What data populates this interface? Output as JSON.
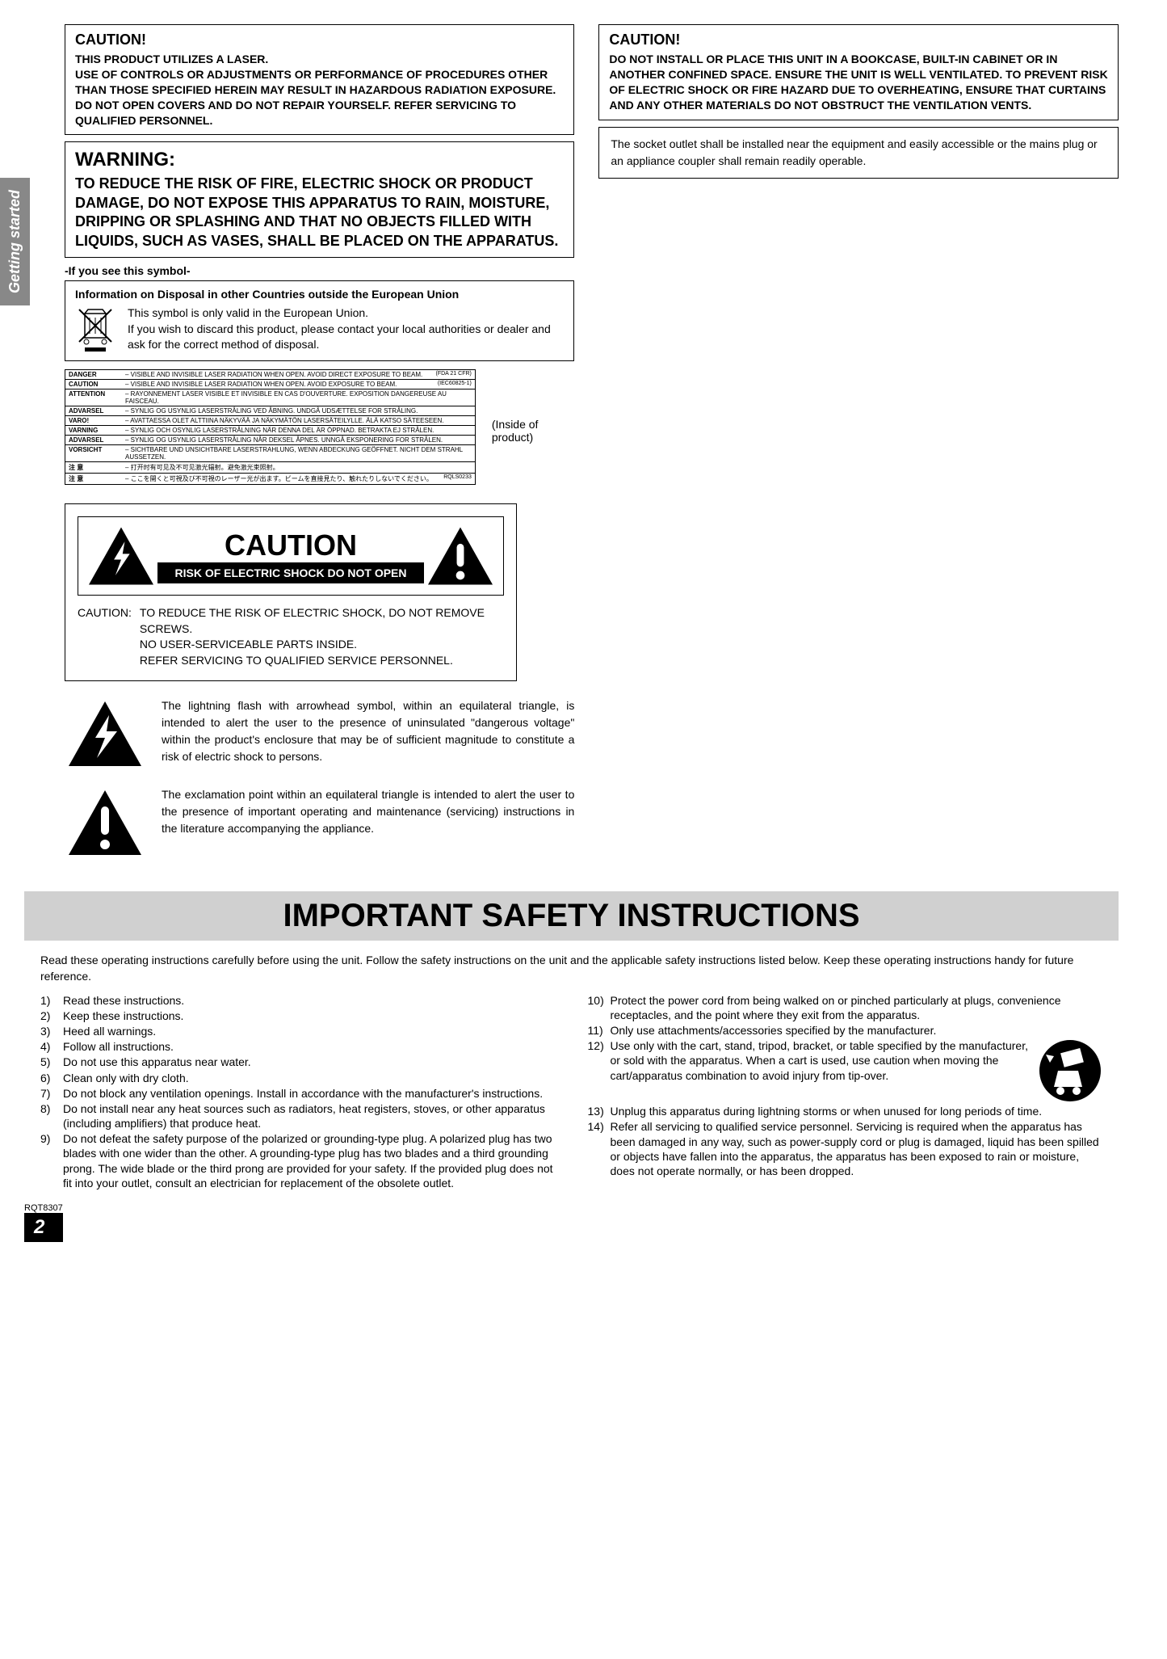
{
  "sidebar_label": "Getting started",
  "caution1": {
    "title": "CAUTION!",
    "text": "THIS PRODUCT UTILIZES A LASER.\nUSE OF CONTROLS OR ADJUSTMENTS OR PERFORMANCE OF PROCEDURES OTHER THAN THOSE SPECIFIED HEREIN MAY RESULT IN HAZARDOUS RADIATION EXPOSURE.\nDO NOT OPEN COVERS AND DO NOT REPAIR YOURSELF. REFER SERVICING TO QUALIFIED PERSONNEL."
  },
  "warning": {
    "title": "WARNING:",
    "text": "TO REDUCE THE RISK OF FIRE, ELECTRIC SHOCK OR PRODUCT DAMAGE, DO NOT EXPOSE THIS APPARATUS TO RAIN, MOISTURE, DRIPPING OR SPLASHING AND THAT NO OBJECTS FILLED WITH LIQUIDS, SUCH AS VASES, SHALL BE PLACED ON THE APPARATUS."
  },
  "symbol_note": "-If you see this symbol-",
  "disposal": {
    "title": "Information on Disposal in other Countries outside the European Union",
    "text": "This symbol is only valid in the European Union.\nIf you wish to discard this product, please contact your local authorities or dealer and ask for the correct method of disposal."
  },
  "laser_rows": [
    {
      "k": "DANGER",
      "v": "– VISIBLE AND INVISIBLE LASER RADIATION WHEN OPEN. AVOID DIRECT EXPOSURE TO BEAM.",
      "c": "(FDA 21 CFR)"
    },
    {
      "k": "CAUTION",
      "v": "– VISIBLE AND INVISIBLE LASER RADIATION WHEN OPEN. AVOID EXPOSURE TO BEAM.",
      "c": "(IEC60825-1)"
    },
    {
      "k": "ATTENTION",
      "v": "– RAYONNEMENT LASER VISIBLE ET INVISIBLE EN CAS D'OUVERTURE. EXPOSITION DANGEREUSE AU FAISCEAU.",
      "c": ""
    },
    {
      "k": "ADVARSEL",
      "v": "– SYNLIG OG USYNLIG LASERSTRÅLING VED ÅBNING. UNDGÅ UDSÆTTELSE FOR STRÅLING.",
      "c": ""
    },
    {
      "k": "VARO!",
      "v": "– AVATTAESSA OLET ALTTIINA NÄKYVÄÄ JA NÄKYMÄTÖN LASERSÄTEILYLLE. ÄLÄ KATSO SÄTEESEEN.",
      "c": ""
    },
    {
      "k": "VARNING",
      "v": "– SYNLIG OCH OSYNLIG LASERSTRÅLNING NÄR DENNA DEL ÄR ÖPPNAD. BETRAKTA EJ STRÅLEN.",
      "c": ""
    },
    {
      "k": "ADVARSEL",
      "v": "– SYNLIG OG USYNLIG LASERSTRÅLING NÅR DEKSEL ÅPNES. UNNGÅ EKSPONERING FOR STRÅLEN.",
      "c": ""
    },
    {
      "k": "VORSICHT",
      "v": "– SICHTBARE UND UNSICHTBARE LASERSTRAHLUNG, WENN ABDECKUNG GEÖFFNET. NICHT DEM STRAHL AUSSETZEN.",
      "c": ""
    },
    {
      "k": "注 意",
      "v": "– 打开时有可见及不可见激光辐射。避免激光束照射。",
      "c": ""
    },
    {
      "k": "注 意",
      "v": "– ここを開くと可視及び不可視のレーザー光が出ます。ビームを直接見たり、触れたりしないでください。",
      "c": "RQLS0233"
    }
  ],
  "inside_note": "(Inside of product)",
  "caution_panel": {
    "big": "CAUTION",
    "sub": "RISK OF ELECTRIC SHOCK DO NOT OPEN",
    "label": "CAUTION:",
    "body": "TO REDUCE THE RISK OF ELECTRIC SHOCK, DO NOT REMOVE SCREWS.\nNO USER-SERVICEABLE PARTS INSIDE.\nREFER SERVICING TO QUALIFIED SERVICE PERSONNEL."
  },
  "lightning_desc": "The lightning flash with arrowhead symbol, within an equilateral triangle, is intended to alert the user to the presence of uninsulated \"dangerous voltage\" within the product's enclosure that may be of sufficient magnitude to constitute a risk of electric shock to persons.",
  "exclaim_desc": "The exclamation point within an equilateral triangle is intended to alert the user to the presence of important operating and maintenance (servicing) instructions in the literature accompanying the appliance.",
  "caution2": {
    "title": "CAUTION!",
    "text": "DO NOT INSTALL OR PLACE THIS UNIT IN A BOOKCASE, BUILT-IN CABINET OR IN ANOTHER CONFINED SPACE. ENSURE THE UNIT IS WELL VENTILATED. TO PREVENT RISK OF ELECTRIC SHOCK OR FIRE HAZARD DUE TO OVERHEATING, ENSURE THAT CURTAINS AND ANY OTHER MATERIALS DO NOT OBSTRUCT THE VENTILATION VENTS."
  },
  "socket_text": "The socket outlet shall be installed near the equipment and easily accessible or the mains plug or an appliance coupler shall remain readily operable.",
  "main_title": "IMPORTANT SAFETY INSTRUCTIONS",
  "intro": "Read these operating instructions carefully before using the unit. Follow the safety instructions on the unit and the applicable safety instructions listed below. Keep these operating instructions handy for future reference.",
  "instructions_left": [
    {
      "n": "1)",
      "t": "Read these instructions."
    },
    {
      "n": "2)",
      "t": "Keep these instructions."
    },
    {
      "n": "3)",
      "t": "Heed all warnings."
    },
    {
      "n": "4)",
      "t": "Follow all instructions."
    },
    {
      "n": "5)",
      "t": "Do not use this apparatus near water."
    },
    {
      "n": "6)",
      "t": "Clean only with dry cloth."
    },
    {
      "n": "7)",
      "t": "Do not block any ventilation openings. Install in accordance with the manufacturer's instructions."
    },
    {
      "n": "8)",
      "t": "Do not install near any heat sources such as radiators, heat registers, stoves, or other apparatus (including amplifiers) that produce heat."
    },
    {
      "n": "9)",
      "t": "Do not defeat the safety purpose of the polarized or grounding-type plug. A polarized plug has two blades with one wider than the other. A grounding-type plug has two blades and a third grounding prong. The wide blade or the third prong are provided for your safety. If the provided plug does not fit into your outlet, consult an electrician for replacement of the obsolete outlet."
    }
  ],
  "instructions_right": [
    {
      "n": "10)",
      "t": "Protect the power cord from being walked on or pinched particularly at plugs, convenience receptacles, and the point where they exit from the apparatus."
    },
    {
      "n": "11)",
      "t": "Only use attachments/accessories specified by the manufacturer."
    },
    {
      "n": "12)",
      "t": "Use only with the cart, stand, tripod, bracket, or table specified by the manufacturer, or sold with the apparatus. When a cart is used, use caution when moving the cart/apparatus combination to avoid injury from tip-over.",
      "cart": true
    },
    {
      "n": "13)",
      "t": "Unplug this apparatus during lightning storms or when unused for long periods of time."
    },
    {
      "n": "14)",
      "t": "Refer all servicing to qualified service personnel. Servicing is required when the apparatus has been damaged in any way, such as power-supply cord or plug is damaged, liquid has been spilled or objects have fallen into the apparatus, the apparatus has been exposed to rain or moisture, does not operate normally, or has been dropped."
    }
  ],
  "doc_code": "RQT8307",
  "page_num": "2"
}
